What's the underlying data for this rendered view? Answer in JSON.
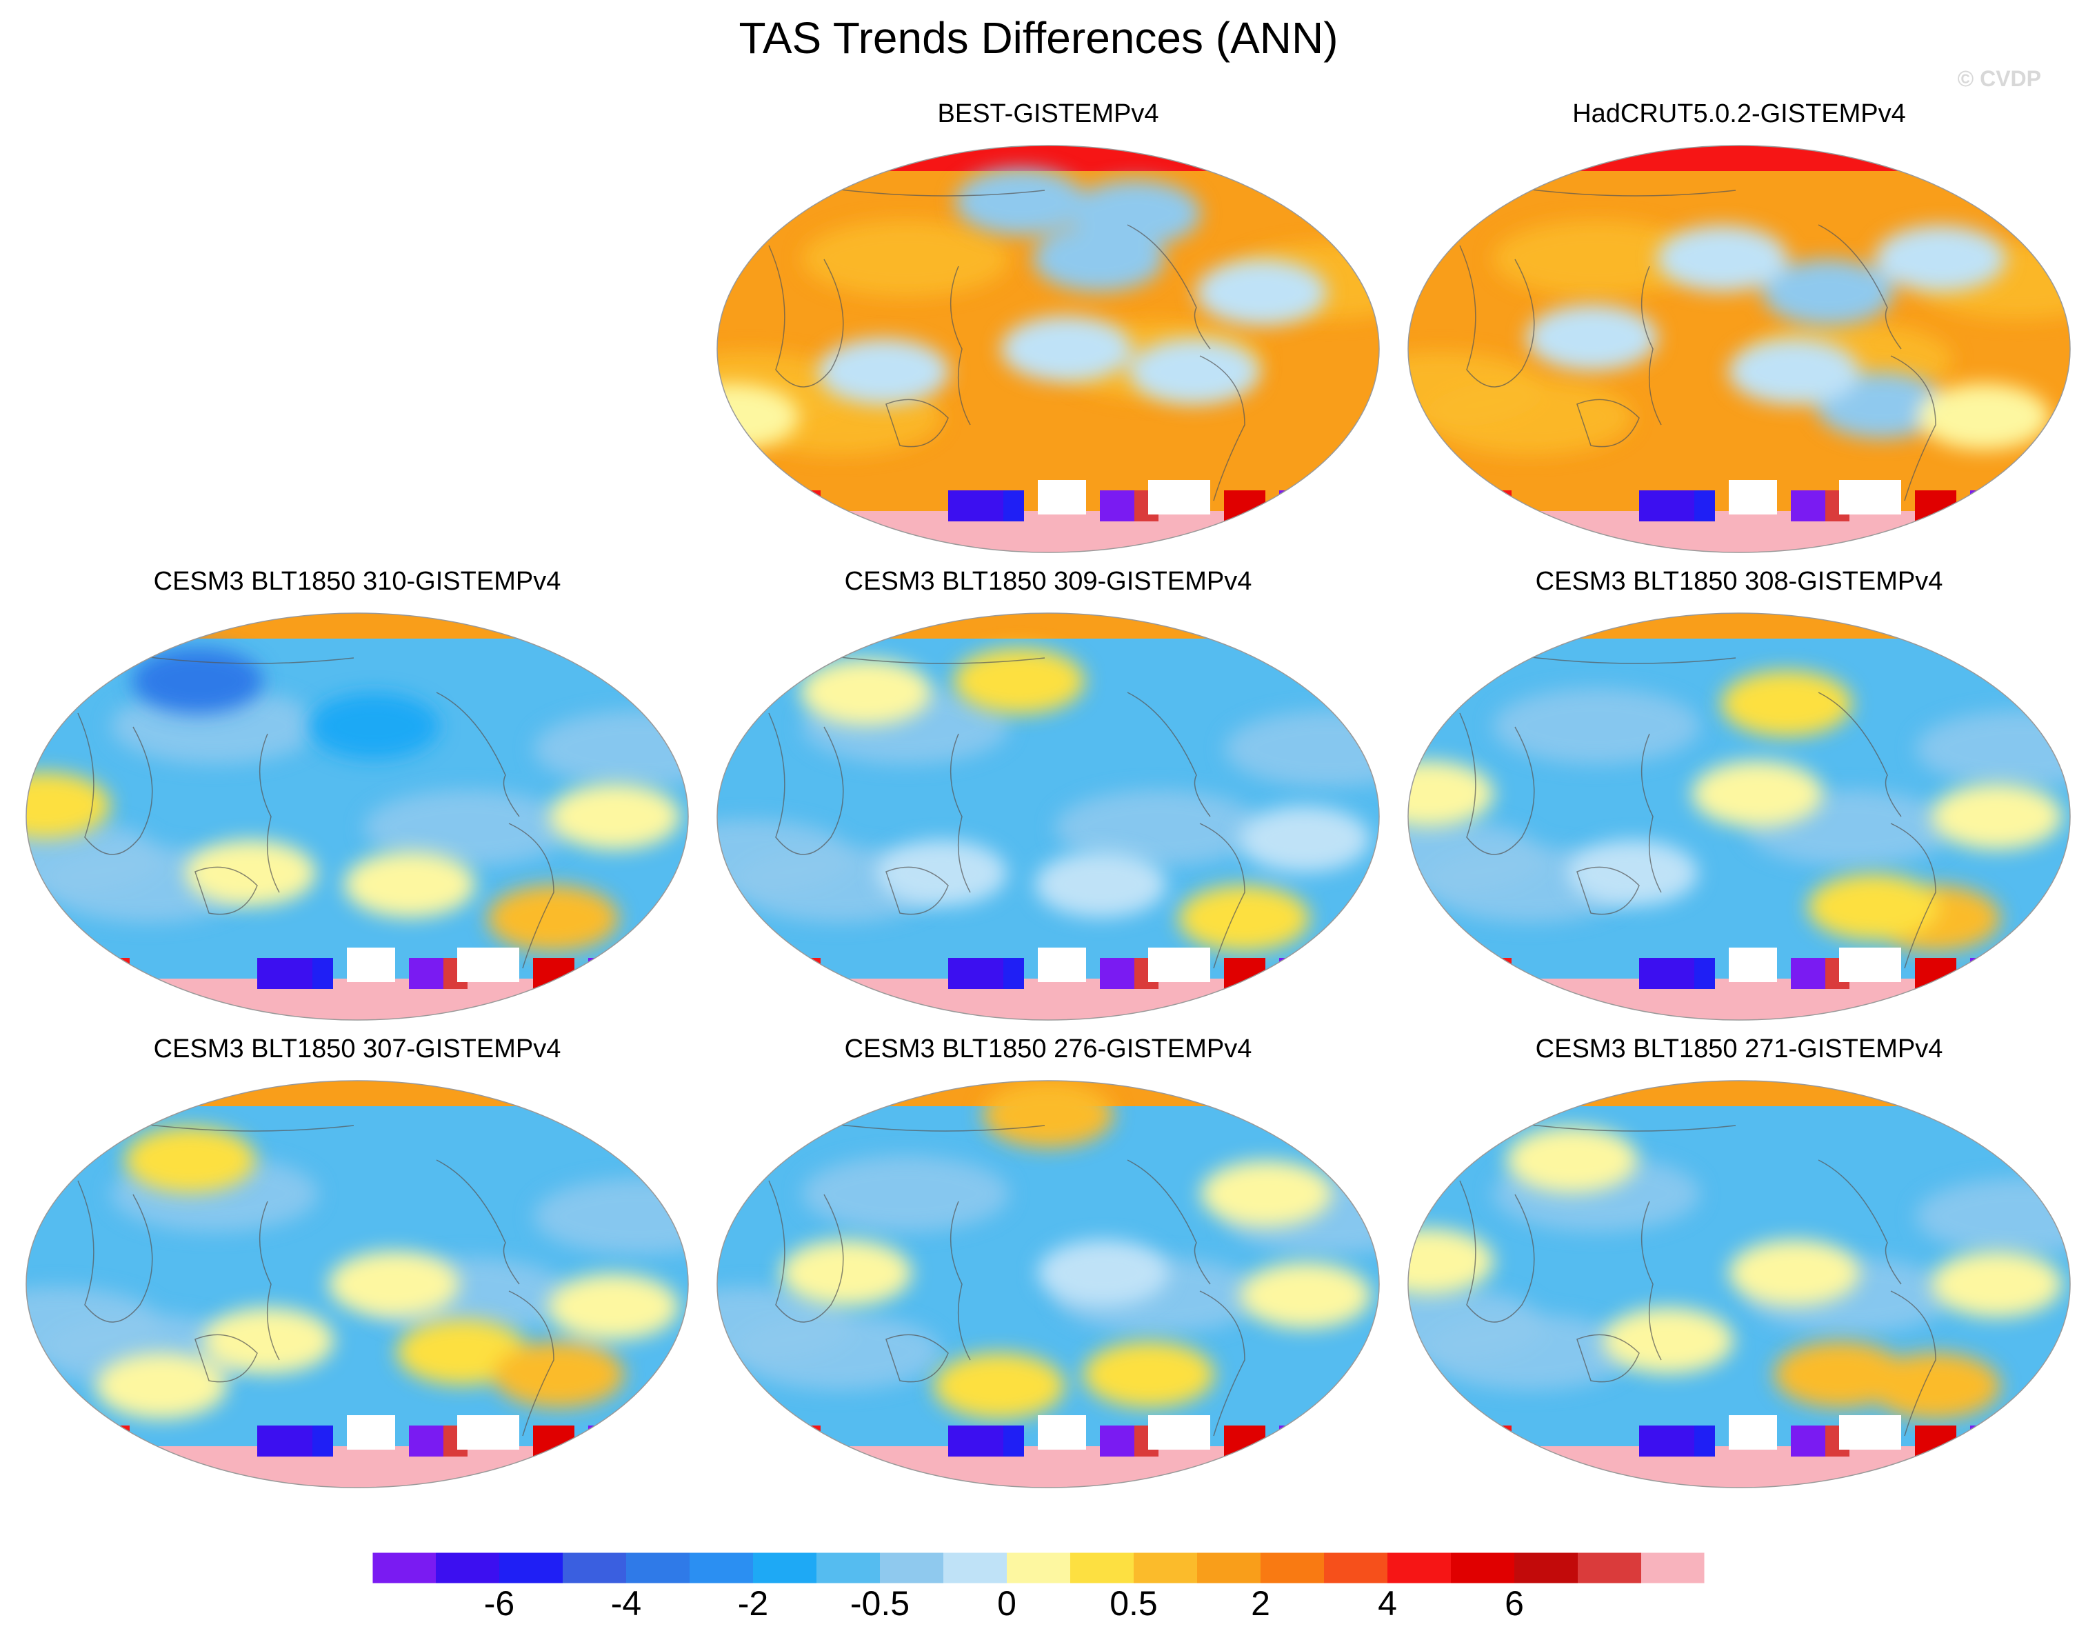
{
  "title": "TAS Trends Differences (ANN)",
  "copyright": "© CVDP",
  "chart_data": {
    "type": "heatmap",
    "projection": "Robinson-like global map, centered on the Pacific",
    "variable": "TAS trend difference",
    "season": "ANN",
    "panels": [
      {
        "title": "BEST-GISTEMPv4",
        "dominant_sign": "warm",
        "patches": [
          {
            "lon": -150,
            "lat": 40,
            "bin": 8
          },
          {
            "lon": -60,
            "lat": 25,
            "bin": 9
          },
          {
            "lon": 90,
            "lat": -10,
            "bin": 9
          },
          {
            "lon": -100,
            "lat": -10,
            "bin": 9
          },
          {
            "lon": -170,
            "lat": 0,
            "bin": 9
          },
          {
            "lon": 160,
            "lat": 65,
            "bin": 8
          },
          {
            "lon": -120,
            "lat": 60,
            "bin": 8
          },
          {
            "lon": 0,
            "lat": -30,
            "bin": 10
          }
        ]
      },
      {
        "title": "HadCRUT5.0.2-GISTEMPv4",
        "dominant_sign": "warm",
        "patches": [
          {
            "lon": -130,
            "lat": 25,
            "bin": 8
          },
          {
            "lon": -100,
            "lat": -25,
            "bin": 8
          },
          {
            "lon": -150,
            "lat": -10,
            "bin": 9
          },
          {
            "lon": -60,
            "lat": 40,
            "bin": 9
          },
          {
            "lon": 100,
            "lat": 5,
            "bin": 9
          },
          {
            "lon": 170,
            "lat": 40,
            "bin": 9
          },
          {
            "lon": -40,
            "lat": -30,
            "bin": 10
          }
        ]
      },
      {
        "title": "CESM3 BLT1850 310-GISTEMPv4",
        "dominant_sign": "cool",
        "patches": [
          {
            "lon": -60,
            "lat": -45,
            "bin": 12
          },
          {
            "lon": -150,
            "lat": -30,
            "bin": 10
          },
          {
            "lon": 120,
            "lat": -25,
            "bin": 10
          },
          {
            "lon": -40,
            "lat": 0,
            "bin": 10
          },
          {
            "lon": 10,
            "lat": 5,
            "bin": 11
          },
          {
            "lon": -170,
            "lat": 40,
            "bin": 6
          },
          {
            "lon": 70,
            "lat": 60,
            "bin": 4
          }
        ]
      },
      {
        "title": "CESM3 BLT1850 309-GISTEMPv4",
        "dominant_sign": "cool",
        "patches": [
          {
            "lon": 160,
            "lat": 60,
            "bin": 11
          },
          {
            "lon": 60,
            "lat": 55,
            "bin": 10
          },
          {
            "lon": -60,
            "lat": -45,
            "bin": 11
          },
          {
            "lon": -150,
            "lat": -30,
            "bin": 9
          },
          {
            "lon": -40,
            "lat": -10,
            "bin": 9
          },
          {
            "lon": 120,
            "lat": -25,
            "bin": 9
          }
        ]
      },
      {
        "title": "CESM3 BLT1850 308-GISTEMPv4",
        "dominant_sign": "cool",
        "patches": [
          {
            "lon": -170,
            "lat": 10,
            "bin": 10
          },
          {
            "lon": -60,
            "lat": -45,
            "bin": 12
          },
          {
            "lon": -100,
            "lat": -40,
            "bin": 11
          },
          {
            "lon": -150,
            "lat": 50,
            "bin": 11
          },
          {
            "lon": -40,
            "lat": 0,
            "bin": 10
          },
          {
            "lon": 120,
            "lat": -25,
            "bin": 9
          },
          {
            "lon": 10,
            "lat": 10,
            "bin": 10
          }
        ]
      },
      {
        "title": "CESM3 BLT1850 307-GISTEMPv4",
        "dominant_sign": "cool",
        "patches": [
          {
            "lon": 70,
            "lat": 55,
            "bin": 11
          },
          {
            "lon": -120,
            "lat": -30,
            "bin": 11
          },
          {
            "lon": -60,
            "lat": -40,
            "bin": 12
          },
          {
            "lon": -160,
            "lat": 0,
            "bin": 10
          },
          {
            "lon": -40,
            "lat": -10,
            "bin": 10
          },
          {
            "lon": 130,
            "lat": -25,
            "bin": 10
          },
          {
            "lon": 60,
            "lat": -45,
            "bin": 10
          }
        ]
      },
      {
        "title": "CESM3 BLT1850 276-GISTEMPv4",
        "dominant_sign": "cool",
        "patches": [
          {
            "lon": 150,
            "lat": -45,
            "bin": 11
          },
          {
            "lon": -120,
            "lat": -40,
            "bin": 11
          },
          {
            "lon": -40,
            "lat": -5,
            "bin": 10
          },
          {
            "lon": -150,
            "lat": 5,
            "bin": 9
          },
          {
            "lon": -50,
            "lat": 40,
            "bin": 10
          },
          {
            "lon": 70,
            "lat": 5,
            "bin": 10
          },
          {
            "lon": 180,
            "lat": 75,
            "bin": 12
          }
        ]
      },
      {
        "title": "CESM3 BLT1850 271-GISTEMPv4",
        "dominant_sign": "cool",
        "patches": [
          {
            "lon": -120,
            "lat": -40,
            "bin": 12
          },
          {
            "lon": -60,
            "lat": -45,
            "bin": 12
          },
          {
            "lon": -150,
            "lat": 5,
            "bin": 10
          },
          {
            "lon": -40,
            "lat": 0,
            "bin": 10
          },
          {
            "lon": 140,
            "lat": -25,
            "bin": 10
          },
          {
            "lon": 70,
            "lat": 55,
            "bin": 10
          },
          {
            "lon": 10,
            "lat": 10,
            "bin": 10
          }
        ]
      }
    ],
    "colorbar": {
      "colors": [
        "#7a1bf2",
        "#3c0ff0",
        "#1f1ff5",
        "#3a5fe0",
        "#2f7ae8",
        "#2b8ff2",
        "#1ea9f5",
        "#55bcf0",
        "#8fc9ee",
        "#bfe2f7",
        "#fdf7a0",
        "#fde041",
        "#fbbb2b",
        "#f99e1a",
        "#f97a12",
        "#f6501b",
        "#f61515",
        "#e00000",
        "#c20a0a",
        "#da3b3b",
        "#f8b3bd"
      ],
      "tick_labels": [
        "-6",
        "-4",
        "-2",
        "-0.5",
        "0",
        "0.5",
        "2",
        "4",
        "6"
      ],
      "tick_boundaries": [
        2,
        4,
        6,
        8,
        10,
        12,
        14,
        16,
        18
      ]
    }
  }
}
